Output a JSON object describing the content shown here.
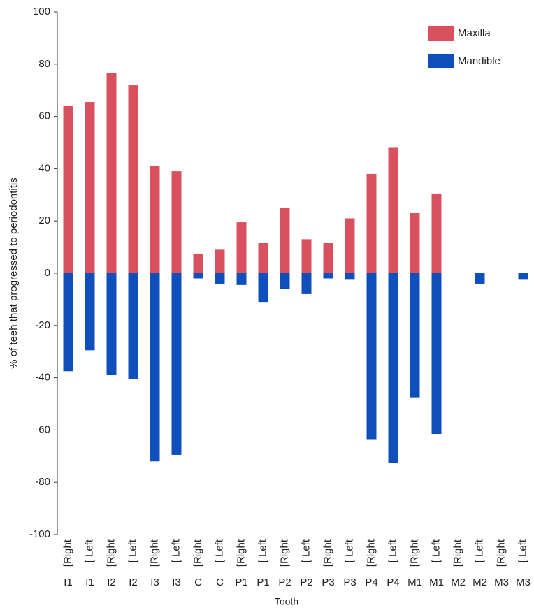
{
  "chart_data": {
    "type": "bar",
    "x_label": "Tooth",
    "y_label": "% of teeh that progressed to periodontitis",
    "categories": [
      [
        "[Right",
        "I1"
      ],
      [
        "[ Left",
        "I1"
      ],
      [
        "[Right",
        "I2"
      ],
      [
        "[ Left",
        "I2"
      ],
      [
        "[Right",
        "I3"
      ],
      [
        "[ Left",
        "I3"
      ],
      [
        "[Right",
        "C"
      ],
      [
        "[ Left",
        "C"
      ],
      [
        "[Right",
        "P1"
      ],
      [
        "[ Left",
        "P1"
      ],
      [
        "[Right",
        "P2"
      ],
      [
        "[ Left",
        "P2"
      ],
      [
        "[Right",
        "P3"
      ],
      [
        "[ Left",
        "P3"
      ],
      [
        "[Right",
        "P4"
      ],
      [
        "[ Left",
        "P4"
      ],
      [
        "[Right",
        "M1"
      ],
      [
        "[ Left",
        "M1"
      ],
      [
        "[Right",
        "M2"
      ],
      [
        "[ Left",
        "M2"
      ],
      [
        "[Right",
        "M3"
      ],
      [
        "[ Left",
        "M3"
      ]
    ],
    "series": [
      {
        "name": "Maxilla",
        "color": "#d9515f",
        "values": [
          64,
          65.5,
          76.5,
          72,
          41,
          39,
          7.5,
          9,
          19.5,
          11.5,
          25,
          13,
          11.5,
          21,
          38,
          48,
          23,
          30.5,
          0,
          0,
          0,
          0
        ]
      },
      {
        "name": "Mandible",
        "color": "#0f4fbb",
        "values": [
          -37.5,
          -29.5,
          -39,
          -40.5,
          -72,
          -69.5,
          -2,
          -4,
          -4.5,
          -11,
          -6,
          -8,
          -2,
          -2.5,
          -63.5,
          -72.5,
          -47.5,
          -61.5,
          0,
          -4,
          0,
          -2.5
        ]
      }
    ],
    "ylim": [
      -100,
      100
    ],
    "yticks": [
      -100,
      -80,
      -60,
      -40,
      -20,
      0,
      20,
      40,
      60,
      80,
      100
    ],
    "legend": "top-right"
  }
}
